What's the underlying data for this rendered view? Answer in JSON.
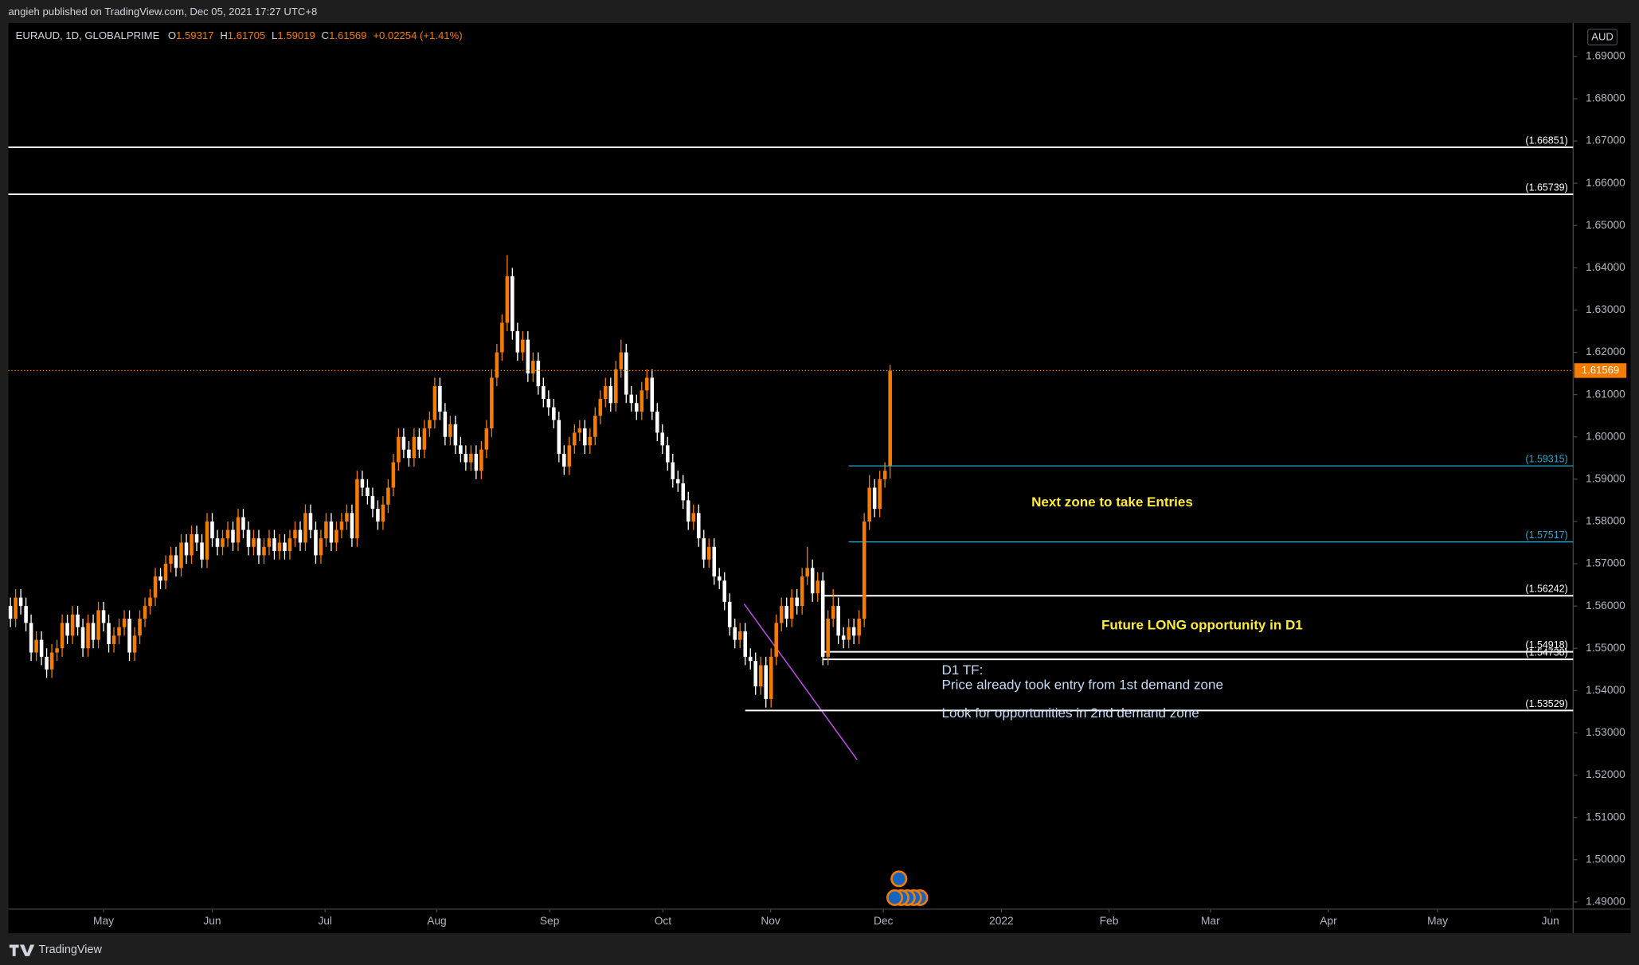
{
  "header": {
    "publisher": "angieh published on TradingView.com, Dec 05, 2021 17:27 UTC+8"
  },
  "chart_data": {
    "type": "candlestick",
    "symbol": "EURAUD, 1D, GLOBALPRIME",
    "legend_keys": [
      "O",
      "H",
      "L",
      "C"
    ],
    "change": "+0.02254 (+1.41%)",
    "currency": "AUD",
    "up_color": "#f57c00",
    "down_color": "#ffffff",
    "grid": false,
    "x": [
      0,
      1,
      2,
      3,
      4,
      5,
      6,
      7,
      8,
      9,
      10,
      11,
      12,
      13,
      14,
      15,
      16,
      17,
      18,
      19,
      20,
      21,
      22,
      23,
      24,
      25,
      26,
      27,
      28,
      29,
      30,
      31,
      32,
      33,
      34,
      35,
      36,
      37,
      38,
      39,
      40,
      41,
      42,
      43,
      44,
      45,
      46,
      47,
      48,
      49,
      50,
      51,
      52,
      53,
      54,
      55,
      56,
      57,
      58,
      59,
      60,
      61,
      62,
      63,
      64,
      65,
      66,
      67,
      68,
      69,
      70,
      71,
      72,
      73,
      74,
      75,
      76,
      77,
      78,
      79,
      80,
      81,
      82,
      83,
      84,
      85,
      86,
      87,
      88,
      89,
      90,
      91,
      92,
      93,
      94,
      95,
      96,
      97,
      98,
      99,
      100,
      101,
      102,
      103,
      104,
      105,
      106,
      107,
      108,
      109,
      110,
      111,
      112,
      113,
      114,
      115,
      116,
      117,
      118,
      119,
      120,
      121,
      122,
      123,
      124,
      125,
      126,
      127,
      128,
      129,
      130,
      131,
      132,
      133,
      134,
      135,
      136,
      137,
      138,
      139,
      140,
      141,
      142,
      143,
      144,
      145,
      146,
      147,
      148,
      149,
      150,
      151,
      152,
      153,
      154,
      155,
      156,
      157,
      158,
      159,
      160,
      161,
      162,
      163,
      164,
      165,
      166,
      167,
      168,
      169,
      170
    ],
    "open": [
      1.56,
      1.557,
      1.562,
      1.56,
      1.556,
      1.549,
      1.552,
      1.548,
      1.545,
      1.549,
      1.55,
      1.556,
      1.553,
      1.558,
      1.555,
      1.55,
      1.556,
      1.552,
      1.559,
      1.556,
      1.551,
      1.553,
      1.555,
      1.557,
      1.549,
      1.553,
      1.557,
      1.56,
      1.562,
      1.567,
      1.566,
      1.57,
      1.572,
      1.569,
      1.575,
      1.572,
      1.577,
      1.575,
      1.571,
      1.58,
      1.576,
      1.574,
      1.576,
      1.578,
      1.575,
      1.581,
      1.578,
      1.574,
      1.576,
      1.572,
      1.574,
      1.576,
      1.573,
      1.575,
      1.573,
      1.576,
      1.578,
      1.575,
      1.582,
      1.578,
      1.572,
      1.576,
      1.58,
      1.575,
      1.578,
      1.58,
      1.582,
      1.576,
      1.59,
      1.588,
      1.586,
      1.583,
      1.58,
      1.584,
      1.588,
      1.594,
      1.6,
      1.597,
      1.595,
      1.6,
      1.597,
      1.602,
      1.604,
      1.612,
      1.606,
      1.6,
      1.603,
      1.598,
      1.596,
      1.594,
      1.596,
      1.592,
      1.597,
      1.602,
      1.614,
      1.62,
      1.627,
      1.638,
      1.625,
      1.62,
      1.623,
      1.615,
      1.618,
      1.612,
      1.609,
      1.607,
      1.604,
      1.596,
      1.593,
      1.598,
      1.601,
      1.602,
      1.598,
      1.6,
      1.605,
      1.609,
      1.612,
      1.608,
      1.616,
      1.62,
      1.61,
      1.608,
      1.606,
      1.611,
      1.614,
      1.606,
      1.601,
      1.598,
      1.594,
      1.59,
      1.589,
      1.585,
      1.58,
      1.582,
      1.576,
      1.571,
      1.574,
      1.567,
      1.566,
      1.561,
      1.555,
      1.552,
      1.554,
      1.548,
      1.547,
      1.541,
      1.546,
      1.538,
      1.548,
      1.556,
      1.56,
      1.557,
      1.562,
      1.56,
      1.567,
      1.569,
      1.563,
      1.566,
      1.548,
      1.557,
      1.56,
      1.553,
      1.552,
      1.555,
      1.553,
      1.557,
      1.58,
      1.588,
      1.583,
      1.59,
      1.59317
    ],
    "high": [
      1.562,
      1.564,
      1.564,
      1.562,
      1.558,
      1.554,
      1.554,
      1.55,
      1.551,
      1.552,
      1.558,
      1.558,
      1.56,
      1.56,
      1.557,
      1.558,
      1.558,
      1.561,
      1.561,
      1.558,
      1.555,
      1.557,
      1.559,
      1.559,
      1.555,
      1.559,
      1.562,
      1.564,
      1.569,
      1.569,
      1.572,
      1.574,
      1.574,
      1.577,
      1.577,
      1.579,
      1.579,
      1.577,
      1.582,
      1.582,
      1.578,
      1.578,
      1.58,
      1.58,
      1.583,
      1.583,
      1.58,
      1.578,
      1.578,
      1.576,
      1.578,
      1.578,
      1.577,
      1.577,
      1.578,
      1.58,
      1.58,
      1.584,
      1.584,
      1.58,
      1.578,
      1.582,
      1.582,
      1.58,
      1.582,
      1.584,
      1.584,
      1.592,
      1.592,
      1.59,
      1.588,
      1.585,
      1.586,
      1.59,
      1.596,
      1.602,
      1.602,
      1.599,
      1.602,
      1.602,
      1.604,
      1.606,
      1.614,
      1.614,
      1.608,
      1.605,
      1.605,
      1.6,
      1.598,
      1.598,
      1.598,
      1.599,
      1.604,
      1.616,
      1.622,
      1.629,
      1.643,
      1.64,
      1.627,
      1.625,
      1.625,
      1.62,
      1.62,
      1.614,
      1.611,
      1.609,
      1.606,
      1.598,
      1.6,
      1.603,
      1.604,
      1.604,
      1.602,
      1.607,
      1.611,
      1.614,
      1.614,
      1.618,
      1.623,
      1.622,
      1.612,
      1.61,
      1.613,
      1.616,
      1.616,
      1.608,
      1.603,
      1.6,
      1.596,
      1.592,
      1.591,
      1.587,
      1.584,
      1.584,
      1.578,
      1.576,
      1.576,
      1.569,
      1.568,
      1.563,
      1.557,
      1.556,
      1.556,
      1.55,
      1.549,
      1.548,
      1.548,
      1.55,
      1.558,
      1.562,
      1.562,
      1.564,
      1.564,
      1.569,
      1.574,
      1.571,
      1.568,
      1.568,
      1.559,
      1.564,
      1.562,
      1.555,
      1.557,
      1.557,
      1.559,
      1.582,
      1.591,
      1.59,
      1.592,
      1.594,
      1.61705
    ],
    "low": [
      1.555,
      1.555,
      1.558,
      1.554,
      1.547,
      1.547,
      1.546,
      1.543,
      1.543,
      1.547,
      1.548,
      1.551,
      1.551,
      1.553,
      1.548,
      1.548,
      1.55,
      1.55,
      1.554,
      1.549,
      1.549,
      1.551,
      1.553,
      1.547,
      1.547,
      1.551,
      1.555,
      1.558,
      1.56,
      1.564,
      1.564,
      1.568,
      1.567,
      1.567,
      1.57,
      1.57,
      1.573,
      1.569,
      1.569,
      1.574,
      1.572,
      1.572,
      1.574,
      1.573,
      1.573,
      1.576,
      1.572,
      1.572,
      1.57,
      1.57,
      1.572,
      1.571,
      1.571,
      1.571,
      1.571,
      1.574,
      1.573,
      1.573,
      1.576,
      1.57,
      1.57,
      1.574,
      1.573,
      1.573,
      1.576,
      1.578,
      1.574,
      1.574,
      1.586,
      1.584,
      1.581,
      1.578,
      1.578,
      1.582,
      1.586,
      1.592,
      1.595,
      1.593,
      1.593,
      1.595,
      1.595,
      1.6,
      1.602,
      1.604,
      1.598,
      1.598,
      1.596,
      1.594,
      1.592,
      1.592,
      1.59,
      1.59,
      1.595,
      1.6,
      1.612,
      1.618,
      1.625,
      1.623,
      1.618,
      1.618,
      1.613,
      1.613,
      1.61,
      1.607,
      1.605,
      1.602,
      1.594,
      1.591,
      1.591,
      1.596,
      1.599,
      1.596,
      1.596,
      1.598,
      1.603,
      1.607,
      1.606,
      1.606,
      1.614,
      1.608,
      1.606,
      1.604,
      1.604,
      1.609,
      1.604,
      1.599,
      1.596,
      1.592,
      1.588,
      1.587,
      1.583,
      1.578,
      1.578,
      1.574,
      1.569,
      1.569,
      1.565,
      1.564,
      1.559,
      1.553,
      1.55,
      1.55,
      1.546,
      1.545,
      1.539,
      1.539,
      1.536,
      1.536,
      1.546,
      1.554,
      1.555,
      1.555,
      1.558,
      1.558,
      1.565,
      1.561,
      1.561,
      1.546,
      1.546,
      1.555,
      1.551,
      1.55,
      1.55,
      1.551,
      1.551,
      1.555,
      1.578,
      1.581,
      1.581,
      1.588,
      1.59019
    ],
    "close": [
      1.557,
      1.562,
      1.56,
      1.556,
      1.549,
      1.552,
      1.548,
      1.545,
      1.549,
      1.55,
      1.556,
      1.553,
      1.558,
      1.555,
      1.55,
      1.556,
      1.552,
      1.559,
      1.556,
      1.551,
      1.553,
      1.555,
      1.557,
      1.549,
      1.553,
      1.557,
      1.56,
      1.562,
      1.567,
      1.566,
      1.57,
      1.572,
      1.569,
      1.575,
      1.572,
      1.577,
      1.575,
      1.571,
      1.58,
      1.576,
      1.574,
      1.576,
      1.578,
      1.575,
      1.581,
      1.578,
      1.574,
      1.576,
      1.572,
      1.574,
      1.576,
      1.573,
      1.575,
      1.573,
      1.576,
      1.578,
      1.575,
      1.582,
      1.578,
      1.572,
      1.576,
      1.58,
      1.575,
      1.578,
      1.58,
      1.582,
      1.576,
      1.59,
      1.588,
      1.586,
      1.583,
      1.58,
      1.584,
      1.588,
      1.594,
      1.6,
      1.597,
      1.595,
      1.6,
      1.597,
      1.602,
      1.604,
      1.612,
      1.606,
      1.6,
      1.603,
      1.598,
      1.596,
      1.594,
      1.596,
      1.592,
      1.597,
      1.602,
      1.614,
      1.62,
      1.627,
      1.638,
      1.625,
      1.62,
      1.623,
      1.615,
      1.618,
      1.612,
      1.609,
      1.607,
      1.604,
      1.596,
      1.593,
      1.598,
      1.601,
      1.602,
      1.598,
      1.6,
      1.605,
      1.609,
      1.612,
      1.608,
      1.616,
      1.62,
      1.61,
      1.608,
      1.606,
      1.611,
      1.614,
      1.606,
      1.601,
      1.598,
      1.594,
      1.59,
      1.589,
      1.585,
      1.58,
      1.582,
      1.576,
      1.571,
      1.574,
      1.567,
      1.566,
      1.561,
      1.555,
      1.552,
      1.554,
      1.548,
      1.547,
      1.541,
      1.546,
      1.538,
      1.548,
      1.556,
      1.56,
      1.557,
      1.562,
      1.56,
      1.567,
      1.569,
      1.563,
      1.566,
      1.548,
      1.557,
      1.56,
      1.553,
      1.552,
      1.555,
      1.553,
      1.557,
      1.58,
      1.588,
      1.583,
      1.59,
      1.592,
      1.61569
    ],
    "xlim": [
      -0.4,
      302
    ],
    "xticks": [
      {
        "value": 18,
        "label": "May"
      },
      {
        "value": 39,
        "label": "Jun"
      },
      {
        "value": 60.8,
        "label": "Jul"
      },
      {
        "value": 82.4,
        "label": "Aug"
      },
      {
        "value": 104.2,
        "label": "Sep"
      },
      {
        "value": 126.1,
        "label": "Oct"
      },
      {
        "value": 146.9,
        "label": "Nov"
      },
      {
        "value": 168.7,
        "label": "Dec"
      },
      {
        "value": 191.5,
        "label": "2022"
      },
      {
        "value": 212.3,
        "label": "Feb"
      },
      {
        "value": 231.9,
        "label": "Mar"
      },
      {
        "value": 254.7,
        "label": "Apr"
      },
      {
        "value": 275.8,
        "label": "May"
      },
      {
        "value": 297.6,
        "label": "Jun"
      }
    ],
    "ylim": [
      1.4883,
      1.6979
    ],
    "yticks": [
      {
        "value": 1.49,
        "label": "1.49000"
      },
      {
        "value": 1.5,
        "label": "1.50000"
      },
      {
        "value": 1.51,
        "label": "1.51000"
      },
      {
        "value": 1.52,
        "label": "1.52000"
      },
      {
        "value": 1.53,
        "label": "1.53000"
      },
      {
        "value": 1.54,
        "label": "1.54000"
      },
      {
        "value": 1.55,
        "label": "1.55000"
      },
      {
        "value": 1.56,
        "label": "1.56000"
      },
      {
        "value": 1.57,
        "label": "1.57000"
      },
      {
        "value": 1.58,
        "label": "1.58000"
      },
      {
        "value": 1.59,
        "label": "1.59000"
      },
      {
        "value": 1.6,
        "label": "1.60000"
      },
      {
        "value": 1.61,
        "label": "1.61000"
      },
      {
        "value": 1.62,
        "label": "1.62000"
      },
      {
        "value": 1.63,
        "label": "1.63000"
      },
      {
        "value": 1.64,
        "label": "1.64000"
      },
      {
        "value": 1.65,
        "label": "1.65000"
      },
      {
        "value": 1.66,
        "label": "1.66000"
      },
      {
        "value": 1.67,
        "label": "1.67000"
      },
      {
        "value": 1.68,
        "label": "1.68000"
      },
      {
        "value": 1.69,
        "label": "1.69000"
      }
    ],
    "levels": [
      {
        "value": 1.66851,
        "label": "(1.66851)",
        "color": "#ffffff"
      },
      {
        "value": 1.65739,
        "label": "(1.65739)",
        "color": "#ffffff"
      },
      {
        "value": 1.59315,
        "label": "(1.59315)",
        "color": "#26a9d0",
        "start": 162
      },
      {
        "value": 1.57517,
        "label": "(1.57517)",
        "color": "#26a9d0",
        "start": 162
      },
      {
        "value": 1.56242,
        "label": "(1.56242)",
        "color": "#ffffff",
        "start": 157
      },
      {
        "value": 1.54918,
        "label": "(1.54918)",
        "color": "#ffffff",
        "start": 157
      },
      {
        "value": 1.54738,
        "label": "(1.54738)",
        "color": "#ffffff",
        "start": 157
      },
      {
        "value": 1.53529,
        "label": "(1.53529)",
        "color": "#ffffff",
        "start": 142
      }
    ],
    "annotations": [
      "Next zone to take Entries",
      "Future LONG opportunity in D1",
      "D1 TF:",
      "Price already took entry from 1st demand zone",
      "Look for opportunities in 2nd demand zone"
    ]
  },
  "footer": {
    "brand": "TradingView"
  }
}
